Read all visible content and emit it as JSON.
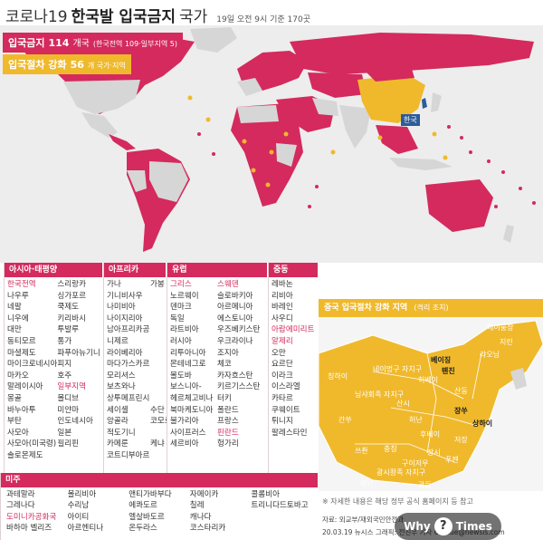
{
  "title": {
    "part1": "코로나19",
    "part2": "한국발 입국금지",
    "part3": "국가",
    "subtitle": "19일 오전 9시 기준 170곳"
  },
  "legend": {
    "ban": {
      "label": "입국금지",
      "count": "114",
      "unit": "개국",
      "note": "(한국전역 109·일부지역 5)"
    },
    "restrict": {
      "label": "입국절차 강화",
      "count": "56",
      "unit": "개 국가·지역"
    }
  },
  "map": {
    "korea_label": "한국"
  },
  "colors": {
    "ban": "#d42a5d",
    "restrict": "#f0b92c",
    "none": "#d6d6d6",
    "ocean": "#efefef",
    "korea": "#2c5c9a"
  },
  "panels": {
    "asia": {
      "heading": "아시아·태평양",
      "col1": [
        {
          "t": "한국전역",
          "red": true
        },
        {
          "t": "나우루"
        },
        {
          "t": "네팔"
        },
        {
          "t": "니우에"
        },
        {
          "t": "대만"
        },
        {
          "t": "동티모르"
        },
        {
          "t": "마셜제도"
        },
        {
          "t": "마이크로네시아"
        },
        {
          "t": "마카오"
        },
        {
          "t": "말레이시아"
        },
        {
          "t": "몽골"
        },
        {
          "t": "바누아투"
        },
        {
          "t": "부탄"
        },
        {
          "t": "사모아"
        },
        {
          "t": "사모아(미국령)"
        },
        {
          "t": "솔로몬제도"
        }
      ],
      "col2": [
        {
          "t": "스리랑카"
        },
        {
          "t": "싱가포르"
        },
        {
          "t": "쿡제도"
        },
        {
          "t": "키리바시"
        },
        {
          "t": "투발루"
        },
        {
          "t": "통가"
        },
        {
          "t": "파푸아뉴기니"
        },
        {
          "t": "피지"
        },
        {
          "t": "호주"
        },
        {
          "t": "일부지역",
          "red": true
        },
        {
          "t": "몰디브"
        },
        {
          "t": "미얀마"
        },
        {
          "t": "인도네시아"
        },
        {
          "t": "일본"
        },
        {
          "t": "필리핀"
        }
      ]
    },
    "africa": {
      "heading": "아프리카",
      "col1": [
        {
          "t": "가나"
        },
        {
          "t": "기니비사우"
        },
        {
          "t": "나미비아"
        },
        {
          "t": "나이지리아"
        },
        {
          "t": "남아프리카공화국"
        },
        {
          "t": "니제르"
        },
        {
          "t": "라이베리아"
        },
        {
          "t": "마다가스카르"
        },
        {
          "t": "모리셔스"
        },
        {
          "t": "보츠와나"
        },
        {
          "t": "상투메프린시페"
        },
        {
          "t": "세이셸"
        },
        {
          "t": "앙골라"
        },
        {
          "t": "적도기니"
        },
        {
          "t": "카메룬"
        },
        {
          "t": "코트디부아르"
        }
      ],
      "col2": [
        {
          "t": "가봉"
        },
        {
          "t": ""
        },
        {
          "t": ""
        },
        {
          "t": ""
        },
        {
          "t": ""
        },
        {
          "t": ""
        },
        {
          "t": ""
        },
        {
          "t": ""
        },
        {
          "t": ""
        },
        {
          "t": ""
        },
        {
          "t": ""
        },
        {
          "t": "수단"
        },
        {
          "t": "코모로"
        },
        {
          "t": ""
        },
        {
          "t": "케냐"
        },
        {
          "t": ""
        }
      ]
    },
    "europe": {
      "heading": "유럽",
      "col1": [
        {
          "t": "그리스",
          "red": true
        },
        {
          "t": "노르웨이"
        },
        {
          "t": "덴마크"
        },
        {
          "t": "독일"
        },
        {
          "t": "라트비아"
        },
        {
          "t": "러시아"
        },
        {
          "t": "리투아니아"
        },
        {
          "t": "몬테네그로"
        },
        {
          "t": "몰도바"
        },
        {
          "t": "보스니아-"
        },
        {
          "t": "헤르체고비나"
        },
        {
          "t": "북마케도니아"
        },
        {
          "t": "불가리아"
        },
        {
          "t": "사이프러스"
        },
        {
          "t": "세르비아"
        }
      ],
      "col2": [
        {
          "t": "스웨덴",
          "red": true
        },
        {
          "t": "슬로바키아"
        },
        {
          "t": "아르메니아"
        },
        {
          "t": "에스토니아"
        },
        {
          "t": "우즈베키스탄"
        },
        {
          "t": "우크라이나"
        },
        {
          "t": "조지아"
        },
        {
          "t": "체코"
        },
        {
          "t": "카자흐스탄"
        },
        {
          "t": "키르기스스탄"
        },
        {
          "t": "터키"
        },
        {
          "t": "폴란드"
        },
        {
          "t": "프랑스"
        },
        {
          "t": "핀란드",
          "red": true
        },
        {
          "t": "헝가리"
        }
      ]
    },
    "mideast": {
      "heading": "중동",
      "col1": [
        {
          "t": "레바논"
        },
        {
          "t": "리비아"
        },
        {
          "t": "바레인"
        },
        {
          "t": "사우디"
        },
        {
          "t": "아랍에미리트",
          "red": true
        },
        {
          "t": "알제리",
          "red": true
        },
        {
          "t": "오만"
        },
        {
          "t": "요르단"
        },
        {
          "t": "이라크"
        },
        {
          "t": "이스라엘"
        },
        {
          "t": "카타르"
        },
        {
          "t": "쿠웨이트"
        },
        {
          "t": "튀니지"
        },
        {
          "t": "팔레스타인"
        }
      ]
    },
    "americas": {
      "heading": "미주",
      "rows": [
        [
          {
            "t": "과테말라"
          },
          {
            "t": "볼리비아"
          },
          {
            "t": "앤티가바부다"
          },
          {
            "t": "자메이카"
          },
          {
            "t": "콜롬비아"
          }
        ],
        [
          {
            "t": "그레나다"
          },
          {
            "t": "수리남"
          },
          {
            "t": "에콰도르"
          },
          {
            "t": "칠레"
          },
          {
            "t": "트리니다드토바고"
          }
        ],
        [
          {
            "t": "도미니카공화국",
            "red": true
          },
          {
            "t": "아이티"
          },
          {
            "t": "엘살바도르"
          },
          {
            "t": "캐나다"
          },
          {
            "t": ""
          }
        ],
        [
          {
            "t": "바하마 벨리즈"
          },
          {
            "t": "아르헨티나"
          },
          {
            "t": "온두라스"
          },
          {
            "t": "코스타리카"
          },
          {
            "t": ""
          }
        ]
      ]
    }
  },
  "inset": {
    "heading": "중국 입국절차 강화 지역",
    "note": "(격리 조치)",
    "labels": [
      "헤이룽장",
      "지린",
      "랴오닝",
      "네이멍구 자치구",
      "베이징",
      "톈진",
      "허베이",
      "닝샤회족 자치구",
      "산시",
      "산둥",
      "간쑤",
      "허난",
      "장쑤",
      "상하이",
      "후베이",
      "쓰촨",
      "충칭",
      "저장",
      "구이저우",
      "광시좡족 자치구",
      "푸젠",
      "윈난",
      "장시",
      "광둥",
      "칭하이"
    ]
  },
  "footer": {
    "note": "※ 자세한 내용은 해당 정부 공식 홈페이지 등 참고",
    "source": "자료: 외교부/재외국민안전과",
    "credit": "20.03.19 뉴시스 그래픽: 전진우 기자 618tue@newsis.com",
    "watermark_left": "Why",
    "watermark_q": "?",
    "watermark_right": "Times"
  }
}
